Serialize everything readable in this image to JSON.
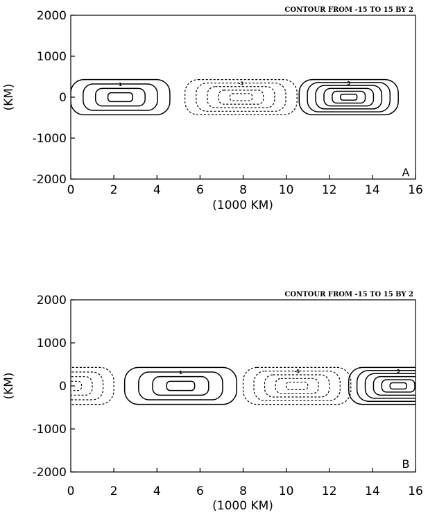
{
  "chart_data": [
    {
      "type": "contour",
      "panel_label": "A",
      "contour_note": "CONTOUR FROM -15 TO 15 BY 2",
      "xlabel": "(1000 KM)",
      "ylabel": "(KM)",
      "xlim": [
        0,
        16
      ],
      "ylim": [
        -2000,
        2000
      ],
      "xticks": [
        0,
        2,
        4,
        6,
        8,
        10,
        12,
        14,
        16
      ],
      "yticks": [
        -2000,
        -1000,
        0,
        1000,
        2000
      ],
      "cells": [
        {
          "center_x": 2.3,
          "center_y": 0,
          "halfwidth_x": 2.3,
          "halfwidth_y": 430,
          "sign": "positive",
          "levels": 4,
          "label": "1"
        },
        {
          "center_x": 7.9,
          "center_y": 0,
          "halfwidth_x": 2.6,
          "halfwidth_y": 430,
          "sign": "negative",
          "levels": 5,
          "label": "-3"
        },
        {
          "center_x": 12.9,
          "center_y": 0,
          "halfwidth_x": 2.3,
          "halfwidth_y": 430,
          "sign": "positive",
          "levels": 6,
          "label": "3"
        }
      ]
    },
    {
      "type": "contour",
      "panel_label": "B",
      "contour_note": "CONTOUR FROM -15 TO 15 BY 2",
      "xlabel": "(1000 KM)",
      "ylabel": "(KM)",
      "xlim": [
        0,
        16
      ],
      "ylim": [
        -2000,
        2000
      ],
      "xticks": [
        0,
        2,
        4,
        6,
        8,
        10,
        12,
        14,
        16
      ],
      "yticks": [
        -2000,
        -1000,
        0,
        1000,
        2000
      ],
      "cells": [
        {
          "center_x": 0.0,
          "center_y": 0,
          "halfwidth_x": 2.0,
          "halfwidth_y": 430,
          "sign": "negative",
          "levels": 4,
          "label": ""
        },
        {
          "center_x": 5.1,
          "center_y": 0,
          "halfwidth_x": 2.6,
          "halfwidth_y": 430,
          "sign": "positive",
          "levels": 4,
          "label": "1"
        },
        {
          "center_x": 10.5,
          "center_y": 0,
          "halfwidth_x": 2.5,
          "halfwidth_y": 430,
          "sign": "negative",
          "levels": 5,
          "label": "-5"
        },
        {
          "center_x": 15.2,
          "center_y": 0,
          "halfwidth_x": 2.3,
          "halfwidth_y": 430,
          "sign": "positive",
          "levels": 6,
          "label": "3"
        }
      ]
    }
  ]
}
